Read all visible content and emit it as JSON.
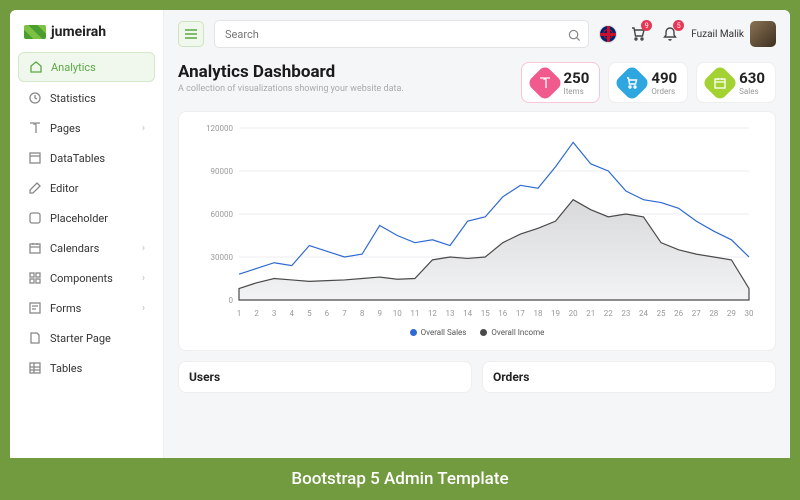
{
  "brand": "jumeirah",
  "search_placeholder": "Search",
  "cart_badge": "9",
  "notif_badge": "5",
  "user_name": "Fuzail Malik",
  "sidebar": [
    {
      "label": "Analytics",
      "icon": "home",
      "active": true,
      "expand": false
    },
    {
      "label": "Statistics",
      "icon": "clock",
      "active": false,
      "expand": false
    },
    {
      "label": "Pages",
      "icon": "book",
      "active": false,
      "expand": true
    },
    {
      "label": "DataTables",
      "icon": "box",
      "active": false,
      "expand": false
    },
    {
      "label": "Editor",
      "icon": "edit",
      "active": false,
      "expand": false
    },
    {
      "label": "Placeholder",
      "icon": "square",
      "active": false,
      "expand": false
    },
    {
      "label": "Calendars",
      "icon": "cal",
      "active": false,
      "expand": true
    },
    {
      "label": "Components",
      "icon": "grid",
      "active": false,
      "expand": true
    },
    {
      "label": "Forms",
      "icon": "form",
      "active": false,
      "expand": true
    },
    {
      "label": "Starter Page",
      "icon": "page",
      "active": false,
      "expand": false
    },
    {
      "label": "Tables",
      "icon": "tbl",
      "active": false,
      "expand": false
    }
  ],
  "page_title": "Analytics Dashboard",
  "page_subtitle": "A collection of visualizations showing your website data.",
  "stats": [
    {
      "value": "250",
      "label": "Items",
      "color": "#f05a8c",
      "icon": "book",
      "hl": true
    },
    {
      "value": "490",
      "label": "Orders",
      "color": "#2ea7e0",
      "icon": "cart",
      "hl": false
    },
    {
      "value": "630",
      "label": "Sales",
      "color": "#a4d233",
      "icon": "cal",
      "hl": false
    }
  ],
  "chart": {
    "type": "area",
    "ylim": [
      0,
      120000
    ],
    "yticks": [
      0,
      30000,
      60000,
      90000,
      120000
    ],
    "xvals": [
      1,
      2,
      3,
      4,
      5,
      6,
      7,
      8,
      9,
      10,
      11,
      12,
      13,
      14,
      15,
      16,
      17,
      18,
      19,
      20,
      21,
      22,
      23,
      24,
      25,
      26,
      27,
      28,
      29,
      30
    ],
    "series": [
      {
        "name": "Overall Sales",
        "color": "#2e6ad1",
        "fill": "none",
        "width": 1.2,
        "values": [
          18000,
          22000,
          26000,
          24000,
          38000,
          34000,
          30000,
          32000,
          52000,
          45000,
          40000,
          42000,
          38000,
          55000,
          58000,
          72000,
          80000,
          78000,
          93000,
          110000,
          95000,
          90000,
          76000,
          70000,
          68000,
          64000,
          55000,
          48000,
          42000,
          30000
        ]
      },
      {
        "name": "Overall Income",
        "color": "#4a4a4a",
        "fill_start": "#d8d9db",
        "fill_end": "#f2f3f4",
        "width": 1.2,
        "values": [
          8000,
          12000,
          15000,
          14000,
          13000,
          13500,
          14000,
          15000,
          16000,
          14500,
          15000,
          28000,
          30000,
          29000,
          30000,
          40000,
          46000,
          50000,
          55000,
          70000,
          63000,
          58000,
          60000,
          58000,
          40000,
          35000,
          32000,
          30000,
          28000,
          8000
        ]
      }
    ],
    "legend": [
      "Overall Sales",
      "Overall Income"
    ],
    "legend_colors": [
      "#2e6ad1",
      "#4a4a4a"
    ],
    "grid_color": "#eceef1",
    "axis_label_color": "#999",
    "axis_fontsize": 8,
    "background": "#ffffff"
  },
  "mini_cards": [
    {
      "title": "Users"
    },
    {
      "title": "Orders"
    }
  ],
  "footer_text": "Bootstrap 5 Admin Template"
}
